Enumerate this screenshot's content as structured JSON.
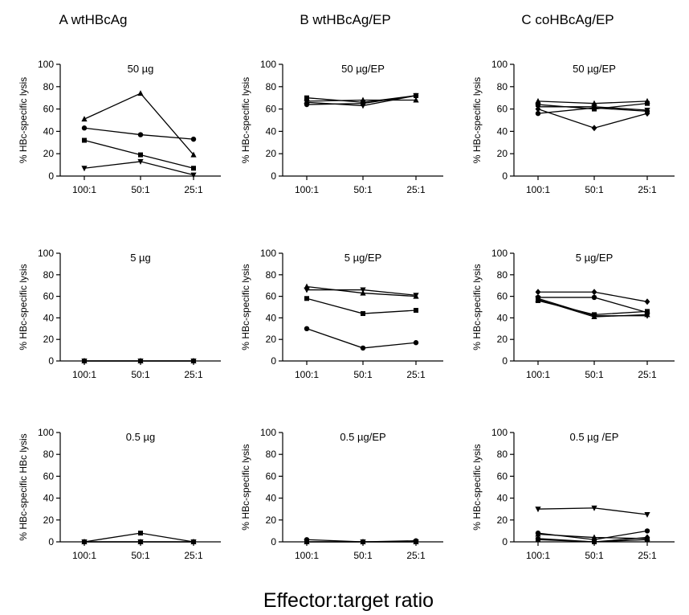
{
  "figure": {
    "column_titles": [
      "A  wtHBcAg",
      "B  wtHBcAg/EP",
      "C  coHBcAg/EP"
    ],
    "x_axis_title": "Effector:target ratio"
  },
  "chart_data": [
    {
      "type": "line",
      "title": "50 µg",
      "ylabel": "% HBc-specific lysis",
      "categories": [
        "100:1",
        "50:1",
        "25:1"
      ],
      "ylim": [
        0,
        100
      ],
      "yticks": [
        0,
        20,
        40,
        60,
        80,
        100
      ],
      "grid": false,
      "series": [
        {
          "marker": "triangle",
          "values": [
            51,
            74,
            19
          ]
        },
        {
          "marker": "circle",
          "values": [
            43,
            37,
            33
          ]
        },
        {
          "marker": "square",
          "values": [
            32,
            19,
            7
          ]
        },
        {
          "marker": "triangle-down",
          "values": [
            7,
            13,
            1
          ]
        }
      ]
    },
    {
      "type": "line",
      "title": "50 µg/EP",
      "ylabel": "% HBc-specific lysis",
      "categories": [
        "100:1",
        "50:1",
        "25:1"
      ],
      "ylim": [
        0,
        100
      ],
      "yticks": [
        0,
        20,
        40,
        60,
        80,
        100
      ],
      "grid": false,
      "series": [
        {
          "marker": "square",
          "values": [
            70,
            66,
            72
          ]
        },
        {
          "marker": "triangle",
          "values": [
            67,
            68,
            68
          ]
        },
        {
          "marker": "triangle-down",
          "values": [
            66,
            63,
            72
          ]
        },
        {
          "marker": "circle",
          "values": [
            64,
            65,
            72
          ]
        }
      ]
    },
    {
      "type": "line",
      "title": "50 µg/EP",
      "ylabel": "% HBc-specific lysis",
      "categories": [
        "100:1",
        "50:1",
        "25:1"
      ],
      "ylim": [
        0,
        100
      ],
      "yticks": [
        0,
        20,
        40,
        60,
        80,
        100
      ],
      "grid": false,
      "series": [
        {
          "marker": "triangle",
          "values": [
            67,
            65,
            67
          ]
        },
        {
          "marker": "square",
          "values": [
            64,
            60,
            65
          ]
        },
        {
          "marker": "triangle-down",
          "values": [
            62,
            62,
            59
          ]
        },
        {
          "marker": "diamond",
          "values": [
            60,
            43,
            56
          ]
        },
        {
          "marker": "circle",
          "values": [
            56,
            61,
            58
          ]
        }
      ]
    },
    {
      "type": "line",
      "title": "5 µg",
      "ylabel": "% HBc-specific lysis",
      "categories": [
        "100:1",
        "50:1",
        "25:1"
      ],
      "ylim": [
        0,
        100
      ],
      "yticks": [
        0,
        20,
        40,
        60,
        80,
        100
      ],
      "grid": false,
      "series": [
        {
          "marker": "circle",
          "values": [
            0,
            0,
            0
          ]
        },
        {
          "marker": "square",
          "values": [
            0,
            0,
            0
          ]
        },
        {
          "marker": "triangle",
          "values": [
            0,
            0,
            0
          ]
        },
        {
          "marker": "triangle-down",
          "values": [
            0,
            0,
            0
          ]
        }
      ]
    },
    {
      "type": "line",
      "title": "5 µg/EP",
      "ylabel": "% HBc-specific lysis",
      "categories": [
        "100:1",
        "50:1",
        "25:1"
      ],
      "ylim": [
        0,
        100
      ],
      "yticks": [
        0,
        20,
        40,
        60,
        80,
        100
      ],
      "grid": false,
      "series": [
        {
          "marker": "triangle",
          "values": [
            69,
            63,
            60
          ]
        },
        {
          "marker": "triangle-down",
          "values": [
            66,
            66,
            61
          ]
        },
        {
          "marker": "square",
          "values": [
            58,
            44,
            47
          ]
        },
        {
          "marker": "circle",
          "values": [
            30,
            12,
            17
          ]
        }
      ]
    },
    {
      "type": "line",
      "title": "5 µg/EP",
      "ylabel": "% HBc-specific lysis",
      "categories": [
        "100:1",
        "50:1",
        "25:1"
      ],
      "ylim": [
        0,
        100
      ],
      "yticks": [
        0,
        20,
        40,
        60,
        80,
        100
      ],
      "grid": false,
      "series": [
        {
          "marker": "diamond",
          "values": [
            64,
            64,
            55
          ]
        },
        {
          "marker": "circle",
          "values": [
            59,
            59,
            45
          ]
        },
        {
          "marker": "square",
          "values": [
            56,
            43,
            46
          ]
        },
        {
          "marker": "triangle",
          "values": [
            57,
            41,
            43
          ]
        },
        {
          "marker": "triangle-down",
          "values": [
            58,
            42,
            42
          ]
        }
      ]
    },
    {
      "type": "line",
      "title": "0.5 µg",
      "ylabel": "% HBc-specific HBc lysis",
      "categories": [
        "100:1",
        "50:1",
        "25:1"
      ],
      "ylim": [
        0,
        100
      ],
      "yticks": [
        0,
        20,
        40,
        60,
        80,
        100
      ],
      "grid": false,
      "series": [
        {
          "marker": "square",
          "values": [
            0,
            8,
            0
          ]
        },
        {
          "marker": "circle",
          "values": [
            0,
            0,
            0
          ]
        },
        {
          "marker": "triangle",
          "values": [
            0,
            0,
            0
          ]
        },
        {
          "marker": "triangle-down",
          "values": [
            0,
            0,
            0
          ]
        }
      ]
    },
    {
      "type": "line",
      "title": "0.5 µg/EP",
      "ylabel": "% HBc-specific lysis",
      "categories": [
        "100:1",
        "50:1",
        "25:1"
      ],
      "ylim": [
        0,
        100
      ],
      "yticks": [
        0,
        20,
        40,
        60,
        80,
        100
      ],
      "grid": false,
      "series": [
        {
          "marker": "circle",
          "values": [
            2,
            0,
            1
          ]
        },
        {
          "marker": "square",
          "values": [
            0,
            0,
            0
          ]
        },
        {
          "marker": "triangle",
          "values": [
            0,
            0,
            0
          ]
        },
        {
          "marker": "triangle-down",
          "values": [
            0,
            0,
            0
          ]
        }
      ]
    },
    {
      "type": "line",
      "title": "0.5 µg /EP",
      "ylabel": "% HBc-specific lysis",
      "categories": [
        "100:1",
        "50:1",
        "25:1"
      ],
      "ylim": [
        0,
        100
      ],
      "yticks": [
        0,
        20,
        40,
        60,
        80,
        100
      ],
      "grid": false,
      "series": [
        {
          "marker": "triangle-down",
          "values": [
            30,
            31,
            25
          ]
        },
        {
          "marker": "circle",
          "values": [
            8,
            2,
            10
          ]
        },
        {
          "marker": "triangle",
          "values": [
            7,
            4,
            3
          ]
        },
        {
          "marker": "square",
          "values": [
            2,
            0,
            2
          ]
        },
        {
          "marker": "diamond",
          "values": [
            3,
            0,
            4
          ]
        }
      ]
    }
  ]
}
